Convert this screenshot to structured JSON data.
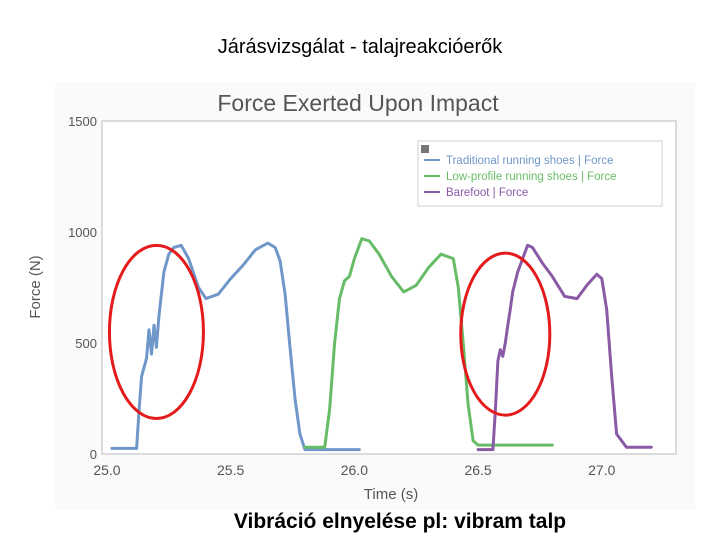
{
  "slide": {
    "title": "Járásvizsgálat - talajreakcióerők",
    "caption": "Vibráció elnyelése pl: vibram talp"
  },
  "chart_data": {
    "type": "line",
    "title": "Force Exerted Upon Impact",
    "xlabel": "Time (s)",
    "ylabel": "Force  (N)",
    "xlim": [
      24.98,
      27.3
    ],
    "ylim": [
      0,
      1500
    ],
    "xticks": [
      25.0,
      25.5,
      26.0,
      26.5,
      27.0
    ],
    "xtick_labels": [
      "25.0",
      "25.5",
      "26.0",
      "26.5",
      "27.0"
    ],
    "yticks": [
      0,
      500,
      1000,
      1500
    ],
    "ytick_labels": [
      "0",
      "500",
      "1000",
      "1500"
    ],
    "grid": true,
    "legend_position": "top-right",
    "series": [
      {
        "name": "Traditional running shoes | Force",
        "color": "#6f97c9",
        "x": [
          25.02,
          25.12,
          25.13,
          25.14,
          25.16,
          25.17,
          25.18,
          25.19,
          25.2,
          25.21,
          25.22,
          25.23,
          25.24,
          25.25,
          25.27,
          25.3,
          25.33,
          25.37,
          25.4,
          25.45,
          25.5,
          25.55,
          25.6,
          25.65,
          25.68,
          25.7,
          25.72,
          25.74,
          25.76,
          25.78,
          25.8,
          26.02
        ],
        "y": [
          25,
          25,
          200,
          350,
          430,
          560,
          450,
          580,
          480,
          620,
          720,
          820,
          860,
          900,
          930,
          940,
          880,
          750,
          700,
          720,
          790,
          850,
          920,
          950,
          930,
          870,
          720,
          480,
          250,
          90,
          20,
          20
        ]
      },
      {
        "name": "Low-profile running shoes | Force",
        "color": "#67bd67",
        "x": [
          25.8,
          25.88,
          25.9,
          25.92,
          25.94,
          25.96,
          25.98,
          26.0,
          26.03,
          26.06,
          26.1,
          26.15,
          26.2,
          26.25,
          26.3,
          26.35,
          26.4,
          26.42,
          26.44,
          26.46,
          26.48,
          26.5,
          26.52,
          26.8
        ],
        "y": [
          30,
          30,
          200,
          500,
          700,
          780,
          800,
          880,
          970,
          960,
          900,
          800,
          730,
          760,
          840,
          900,
          880,
          750,
          500,
          220,
          60,
          40,
          40,
          40
        ]
      },
      {
        "name": "Barefoot | Force",
        "color": "#8a5aa6",
        "x": [
          26.5,
          26.56,
          26.57,
          26.58,
          26.59,
          26.6,
          26.61,
          26.62,
          26.63,
          26.64,
          26.66,
          26.7,
          26.72,
          26.76,
          26.8,
          26.85,
          26.9,
          26.94,
          26.98,
          27.0,
          27.02,
          27.04,
          27.06,
          27.1,
          27.2
        ],
        "y": [
          20,
          20,
          200,
          420,
          470,
          440,
          500,
          580,
          650,
          730,
          820,
          940,
          930,
          860,
          800,
          710,
          700,
          760,
          810,
          790,
          650,
          350,
          90,
          30,
          30
        ]
      }
    ],
    "annotations": [
      {
        "type": "ellipse",
        "color": "#e31b1b",
        "cx": 25.2,
        "cy": 550,
        "rx": 0.19,
        "ry": 390
      },
      {
        "type": "ellipse",
        "color": "#e31b1b",
        "cx": 26.61,
        "cy": 540,
        "rx": 0.18,
        "ry": 365
      }
    ]
  }
}
